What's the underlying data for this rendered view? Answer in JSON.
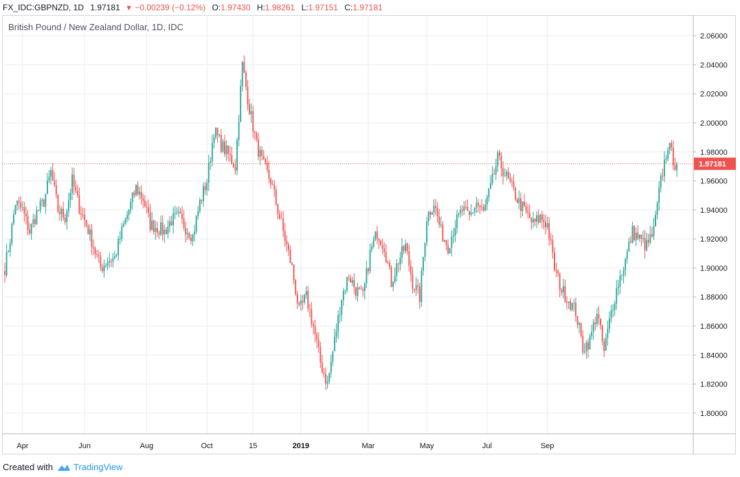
{
  "header": {
    "symbol": "FX_IDC:GBPNZD, 1D",
    "last": "1.97181",
    "change": "−0.00239 (−0.12%)",
    "o_label": "O:",
    "o_val": "1.97430",
    "h_label": "H:",
    "h_val": "1.98261",
    "l_label": "L:",
    "l_val": "1.97151",
    "c_label": "C:",
    "c_val": "1.97181"
  },
  "footer": {
    "created_with": "Created with",
    "brand": "TradingView"
  },
  "colors": {
    "up": "#26a69a",
    "down": "#ef5350",
    "grid": "#e9ecf2",
    "price_line": "#ef5350"
  },
  "chart_data": {
    "type": "candlestick",
    "title": "British Pound / New Zealand Dollar, 1D, IDC",
    "ylim": [
      1.79,
      2.07
    ],
    "y_ticks": [
      "2.06000",
      "2.04000",
      "2.02000",
      "2.00000",
      "1.98000",
      "1.96000",
      "1.94000",
      "1.92000",
      "1.90000",
      "1.88000",
      "1.86000",
      "1.84000",
      "1.82000",
      "1.80000"
    ],
    "x_ticks": [
      "Apr",
      "Jun",
      "Aug",
      "Oct",
      "15",
      "2019",
      "Mar",
      "May",
      "Jul",
      "Sep"
    ],
    "last_price": 1.97181,
    "last_price_label": "1.97181",
    "anchors": [
      [
        0,
        1.9
      ],
      [
        3,
        1.92
      ],
      [
        6,
        1.945
      ],
      [
        10,
        1.94
      ],
      [
        14,
        1.925
      ],
      [
        18,
        1.938
      ],
      [
        22,
        1.946
      ],
      [
        26,
        1.966
      ],
      [
        30,
        1.94
      ],
      [
        34,
        1.935
      ],
      [
        38,
        1.96
      ],
      [
        42,
        1.942
      ],
      [
        46,
        1.93
      ],
      [
        50,
        1.915
      ],
      [
        54,
        1.9
      ],
      [
        58,
        1.905
      ],
      [
        62,
        1.907
      ],
      [
        66,
        1.925
      ],
      [
        70,
        1.94
      ],
      [
        74,
        1.955
      ],
      [
        78,
        1.948
      ],
      [
        82,
        1.93
      ],
      [
        86,
        1.928
      ],
      [
        90,
        1.925
      ],
      [
        94,
        1.933
      ],
      [
        98,
        1.935
      ],
      [
        102,
        1.928
      ],
      [
        106,
        1.922
      ],
      [
        110,
        1.945
      ],
      [
        114,
        1.96
      ],
      [
        118,
        1.995
      ],
      [
        122,
        1.985
      ],
      [
        126,
        1.978
      ],
      [
        130,
        1.97
      ],
      [
        134,
        2.04
      ],
      [
        138,
        2.01
      ],
      [
        142,
        1.985
      ],
      [
        146,
        1.97
      ],
      [
        150,
        1.96
      ],
      [
        154,
        1.94
      ],
      [
        158,
        1.92
      ],
      [
        162,
        1.9
      ],
      [
        166,
        1.87
      ],
      [
        170,
        1.88
      ],
      [
        174,
        1.86
      ],
      [
        178,
        1.835
      ],
      [
        182,
        1.82
      ],
      [
        186,
        1.85
      ],
      [
        190,
        1.88
      ],
      [
        194,
        1.895
      ],
      [
        198,
        1.885
      ],
      [
        202,
        1.88
      ],
      [
        206,
        1.91
      ],
      [
        210,
        1.925
      ],
      [
        214,
        1.915
      ],
      [
        218,
        1.89
      ],
      [
        222,
        1.905
      ],
      [
        226,
        1.915
      ],
      [
        230,
        1.89
      ],
      [
        234,
        1.88
      ],
      [
        238,
        1.935
      ],
      [
        242,
        1.945
      ],
      [
        246,
        1.925
      ],
      [
        250,
        1.915
      ],
      [
        254,
        1.93
      ],
      [
        258,
        1.94
      ],
      [
        262,
        1.935
      ],
      [
        266,
        1.945
      ],
      [
        270,
        1.938
      ],
      [
        274,
        1.955
      ],
      [
        278,
        1.975
      ],
      [
        282,
        1.965
      ],
      [
        286,
        1.955
      ],
      [
        290,
        1.945
      ],
      [
        294,
        1.938
      ],
      [
        298,
        1.93
      ],
      [
        302,
        1.935
      ],
      [
        306,
        1.93
      ],
      [
        310,
        1.9
      ],
      [
        314,
        1.885
      ],
      [
        318,
        1.878
      ],
      [
        322,
        1.87
      ],
      [
        326,
        1.845
      ],
      [
        330,
        1.85
      ],
      [
        334,
        1.87
      ],
      [
        338,
        1.842
      ],
      [
        342,
        1.87
      ],
      [
        346,
        1.89
      ],
      [
        350,
        1.905
      ],
      [
        354,
        1.925
      ],
      [
        358,
        1.92
      ],
      [
        362,
        1.915
      ],
      [
        366,
        1.925
      ],
      [
        370,
        1.96
      ],
      [
        374,
        1.985
      ],
      [
        378,
        1.9718
      ]
    ]
  }
}
